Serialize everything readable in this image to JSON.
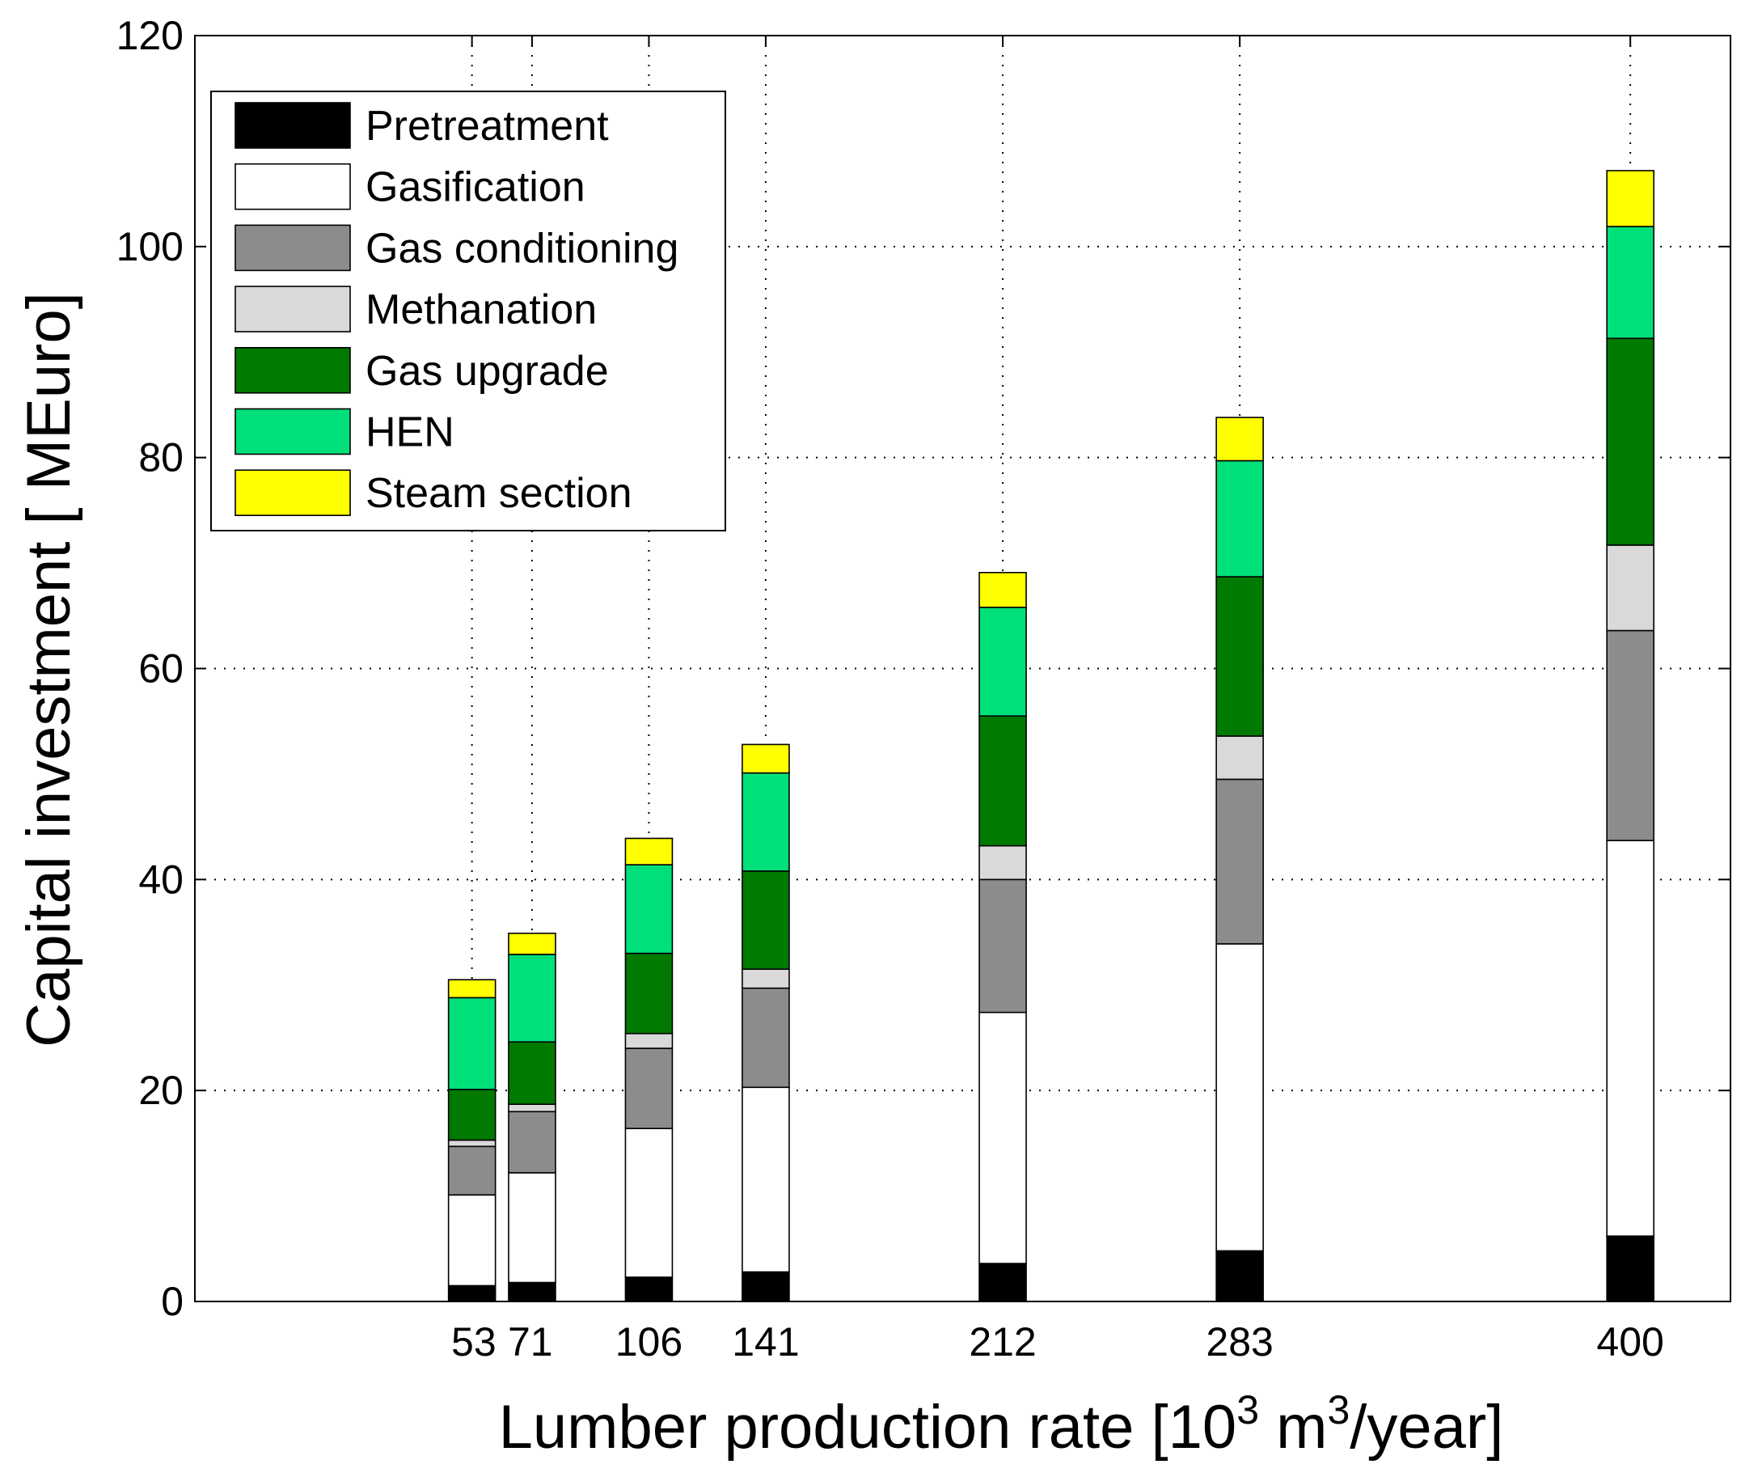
{
  "chart_data": {
    "type": "bar",
    "stacked": true,
    "title": "",
    "xlabel": {
      "text": "Lumber production rate [10",
      "sup1": "3",
      "mid": " m",
      "sup2": "3",
      "end": "/year]"
    },
    "ylabel": "Capital investment [ MEuro]",
    "ylim": [
      0,
      120
    ],
    "yticks": [
      0,
      20,
      40,
      60,
      80,
      100,
      120
    ],
    "xlim": [
      -30,
      430
    ],
    "grid": true,
    "legend_position": "top-left",
    "x": [
      53,
      71,
      106,
      141,
      212,
      283,
      400
    ],
    "tick_labels": [
      "53",
      "71",
      "106",
      "141",
      "212",
      "283",
      "400"
    ],
    "series": [
      {
        "name": "Pretreatment",
        "color": "#000000",
        "values": [
          1.5,
          1.8,
          2.3,
          2.8,
          3.6,
          4.8,
          6.2
        ]
      },
      {
        "name": "Gasification",
        "color": "#ffffff",
        "values": [
          8.6,
          10.4,
          14.1,
          17.5,
          23.8,
          29.1,
          37.5
        ]
      },
      {
        "name": "Gas conditioning",
        "color": "#8c8c8c",
        "values": [
          4.6,
          5.8,
          7.6,
          9.4,
          12.6,
          15.6,
          19.9
        ]
      },
      {
        "name": "Methanation",
        "color": "#d9d9d9",
        "values": [
          0.6,
          0.7,
          1.4,
          1.8,
          3.2,
          4.1,
          8.1
        ]
      },
      {
        "name": "Gas upgrade",
        "color": "#007a00",
        "values": [
          4.8,
          5.9,
          7.6,
          9.3,
          12.3,
          15.1,
          19.6
        ]
      },
      {
        "name": "HEN",
        "color": "#00e07a",
        "values": [
          8.7,
          8.3,
          8.4,
          9.3,
          10.3,
          11.0,
          10.6
        ]
      },
      {
        "name": "Steam section",
        "color": "#ffff00",
        "values": [
          1.7,
          2.0,
          2.5,
          2.7,
          3.3,
          4.1,
          5.3
        ]
      }
    ]
  }
}
